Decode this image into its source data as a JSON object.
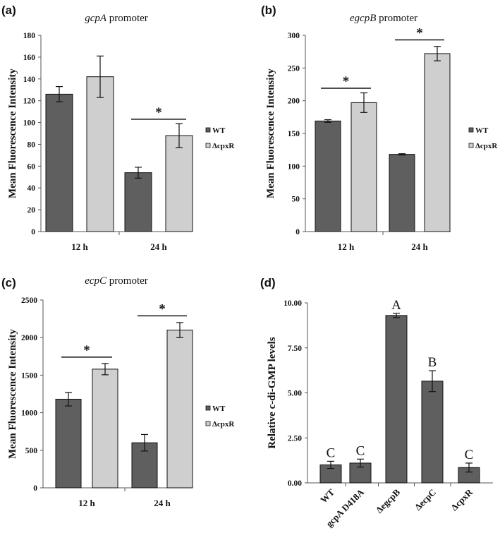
{
  "colors": {
    "wt": "#5f5f5f",
    "mutant": "#cfcfcf",
    "axis": "#555555",
    "outline": "#111111"
  },
  "chart_data": [
    {
      "id": "a",
      "panel_label": "(a)",
      "type": "bar",
      "title_italic": "gcpA",
      "title_rest": " promoter",
      "ylabel": "Mean Fluorescence Intensity",
      "xlabel": "",
      "ylim": [
        0,
        180
      ],
      "yticks": [
        "0",
        "20",
        "40",
        "60",
        "80",
        "100",
        "120",
        "140",
        "160",
        "180"
      ],
      "ytick_values": [
        0,
        20,
        40,
        60,
        80,
        100,
        120,
        140,
        160,
        180
      ],
      "categories": [
        "12 h",
        "24 h"
      ],
      "series": [
        {
          "name": "WT",
          "values": [
            126,
            54
          ],
          "errors": [
            7,
            5
          ]
        },
        {
          "name": "ΔcpxR",
          "values": [
            142,
            88
          ],
          "errors": [
            19,
            11
          ]
        }
      ],
      "significance": [
        {
          "category": "24 h",
          "label": "*",
          "bar_level": 103
        }
      ],
      "legend": [
        "WT",
        "ΔcpxR"
      ],
      "legend_position": "right"
    },
    {
      "id": "b",
      "panel_label": "(b)",
      "type": "bar",
      "title_italic": "egcpB",
      "title_rest": " promoter",
      "ylabel": "Mean Fluorescence Intensity",
      "xlabel": "",
      "ylim": [
        0,
        300
      ],
      "yticks": [
        "0",
        "50",
        "100",
        "150",
        "200",
        "250",
        "300"
      ],
      "ytick_values": [
        0,
        50,
        100,
        150,
        200,
        250,
        300
      ],
      "categories": [
        "12 h",
        "24 h"
      ],
      "series": [
        {
          "name": "WT",
          "values": [
            169,
            118
          ],
          "errors": [
            2,
            1
          ]
        },
        {
          "name": "ΔcpxR",
          "values": [
            197,
            272
          ],
          "errors": [
            15,
            11
          ]
        }
      ],
      "significance": [
        {
          "category": "12 h",
          "label": "*",
          "bar_level": 219
        },
        {
          "category": "24 h",
          "label": "*",
          "bar_level": 293
        }
      ],
      "legend": [
        "WT",
        "ΔcpxR"
      ],
      "legend_position": "right"
    },
    {
      "id": "c",
      "panel_label": "(c)",
      "type": "bar",
      "title_italic": "ecpC",
      "title_rest": " promoter",
      "ylabel": "Mean Fluorescence Intensity",
      "xlabel": "",
      "ylim": [
        0,
        2500
      ],
      "yticks": [
        "0",
        "500",
        "1000",
        "1500",
        "2000",
        "2500"
      ],
      "ytick_values": [
        0,
        500,
        1000,
        1500,
        2000,
        2500
      ],
      "categories": [
        "12 h",
        "24 h"
      ],
      "series": [
        {
          "name": "WT",
          "values": [
            1180,
            600
          ],
          "errors": [
            90,
            110
          ]
        },
        {
          "name": "ΔcpxR",
          "values": [
            1580,
            2100
          ],
          "errors": [
            75,
            100
          ]
        }
      ],
      "significance": [
        {
          "category": "12 h",
          "label": "*",
          "bar_level": 1740
        },
        {
          "category": "24 h",
          "label": "*",
          "bar_level": 2290
        }
      ],
      "legend": [
        "WT",
        "ΔcpxR"
      ],
      "legend_position": "right"
    },
    {
      "id": "d",
      "panel_label": "(d)",
      "type": "bar",
      "title_italic": "",
      "title_rest": "",
      "ylabel": "Relative c-di-GMP levels",
      "xlabel": "",
      "ylim": [
        0,
        10
      ],
      "yticks": [
        "0.00",
        "2.50",
        "5.00",
        "7.50",
        "10.00"
      ],
      "ytick_values": [
        0,
        2.5,
        5,
        7.5,
        10
      ],
      "categories": [
        "WT",
        "gcpA D418A",
        "ΔegcpB",
        "ΔecpC",
        "ΔcpxR"
      ],
      "series": [
        {
          "name": "c-di-GMP",
          "values": [
            1.0,
            1.1,
            9.3,
            5.65,
            0.85
          ],
          "errors": [
            0.2,
            0.22,
            0.12,
            0.58,
            0.25
          ]
        }
      ],
      "letters": [
        "C",
        "C",
        "A",
        "B",
        "C"
      ],
      "legend": [],
      "legend_position": "none"
    }
  ]
}
